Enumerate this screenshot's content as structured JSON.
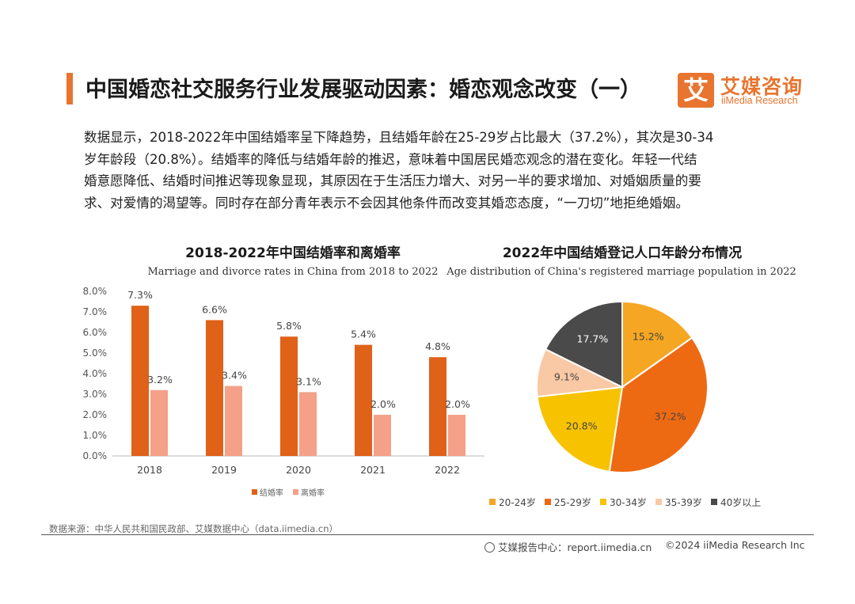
{
  "header": {
    "title": "中国婚恋社交服务行业发展驱动因素：婚恋观念改变（一）",
    "logo_mark": "艾",
    "logo_cn": "艾媒咨询",
    "logo_en": "iiMedia Research"
  },
  "paragraph": [
    "数据显示，2018-2022年中国结婚率呈下降趋势，且结婚年龄在25-29岁占比最大（37.2%），其次是30-34",
    "岁年龄段（20.8%）。结婚率的降低与结婚年龄的推迟，意味着中国居民婚恋观念的潜在变化。年轻一代结",
    "婚意愿降低、结婚时间推迟等现象显现，其原因在于生活压力增大、对另一半的要求增加、对婚姻质量的要",
    "求、对爱情的渴望等。同时存在部分青年表示不会因其他条件而改变其婚恋态度，“一刀切”地拒绝婚姻。"
  ],
  "colors": {
    "accent": "#e8742f",
    "bar_marriage": "#e06118",
    "bar_divorce": "#f5a089"
  },
  "chart_data": [
    {
      "type": "bar",
      "title": "2018-2022年中国结婚率和离婚率",
      "subtitle": "Marriage and divorce rates in China from 2018 to 2022",
      "categories": [
        "2018",
        "2019",
        "2020",
        "2021",
        "2022"
      ],
      "series": [
        {
          "name": "结婚率",
          "values": [
            7.3,
            6.6,
            5.8,
            5.4,
            4.8
          ],
          "labels": [
            "7.3%",
            "6.6%",
            "5.8%",
            "5.4%",
            "4.8%"
          ],
          "color": "#e06118"
        },
        {
          "name": "离婚率",
          "values": [
            3.2,
            3.4,
            3.1,
            2.0,
            2.0
          ],
          "labels": [
            "3.2%",
            "3.4%",
            "3.1%",
            "2.0%",
            "2.0%"
          ],
          "color": "#f5a089"
        }
      ],
      "ylim": [
        0,
        8
      ],
      "yticks": [
        "0.0%",
        "1.0%",
        "2.0%",
        "3.0%",
        "4.0%",
        "5.0%",
        "6.0%",
        "7.0%",
        "8.0%"
      ],
      "legend_position": "bottom",
      "grid": false
    },
    {
      "type": "pie",
      "title": "2022年中国结婚登记人口年龄分布情况",
      "subtitle": "Age distribution of China's registered marriage population in 2022",
      "slices": [
        {
          "name": "20-24岁",
          "value": 15.2,
          "label": "15.2%",
          "color": "#f5a623"
        },
        {
          "name": "25-29岁",
          "value": 37.2,
          "label": "37.2%",
          "color": "#ee6a12"
        },
        {
          "name": "30-34岁",
          "value": 20.8,
          "label": "20.8%",
          "color": "#f7c200"
        },
        {
          "name": "35-39岁",
          "value": 9.1,
          "label": "9.1%",
          "color": "#f8c9a4"
        },
        {
          "name": "40岁以上",
          "value": 17.7,
          "label": "17.7%",
          "color": "#4a4a4a"
        }
      ],
      "legend_position": "bottom"
    }
  ],
  "footer": {
    "source": "数据来源：中华人民共和国民政部、艾媒数据中心（data.iimedia.cn）",
    "report_center": "艾媒报告中心：report.iimedia.cn",
    "copyright": "©2024  iiMedia Research Inc"
  }
}
